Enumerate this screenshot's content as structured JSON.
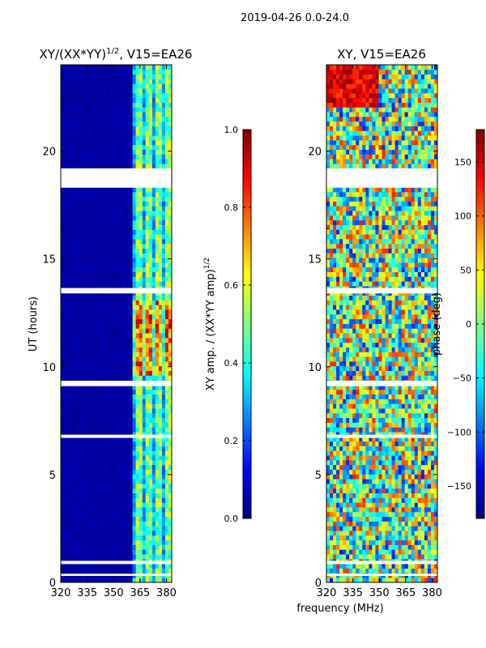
{
  "figure": {
    "suptitle": "2019-04-26 0.0-24.0",
    "shared_xlabel": "frequency (MHz)"
  },
  "colors": {
    "jet": [
      "#00007f",
      "#0000ff",
      "#007fff",
      "#00ffff",
      "#7fff7f",
      "#ffff00",
      "#ff7f00",
      "#ff0000",
      "#7f0000"
    ],
    "gap": "#ffffff"
  },
  "chart_data": [
    {
      "type": "heatmap",
      "title_text": "XY/(XX*YY)",
      "title_exp": "1/2",
      "title_suffix": ", V15=EA26",
      "xlabel": "",
      "ylabel": "UT (hours)",
      "xlim": [
        320,
        383
      ],
      "ylim": [
        0,
        24
      ],
      "xticks": [
        320,
        335,
        350,
        365,
        380
      ],
      "yticks": [
        0,
        5,
        10,
        15,
        20
      ],
      "gaps_ut": [
        [
          18.3,
          19.2
        ],
        [
          13.4,
          13.65
        ],
        [
          9.1,
          9.35
        ],
        [
          6.7,
          6.85
        ],
        [
          0.85,
          1.0
        ],
        [
          0.3,
          0.4
        ]
      ],
      "colorbar": {
        "label_text": "XY amp. / (XX*YY amp)",
        "label_exp": "1/2",
        "range": [
          0.0,
          1.0
        ],
        "ticks": [
          "0.0",
          "0.2",
          "0.4",
          "0.6",
          "0.8",
          "1.0"
        ],
        "tick_values": [
          0.0,
          0.2,
          0.4,
          0.6,
          0.8,
          1.0
        ]
      }
    },
    {
      "type": "heatmap",
      "title_text": "XY, V15=EA26",
      "xlabel": "",
      "ylabel": "",
      "xlim": [
        320,
        383
      ],
      "ylim": [
        0,
        24
      ],
      "xticks": [
        320,
        335,
        350,
        365,
        380
      ],
      "yticks": [
        0,
        5,
        10,
        15,
        20
      ],
      "gaps_ut": [
        [
          18.3,
          19.2
        ],
        [
          13.4,
          13.65
        ],
        [
          9.1,
          9.35
        ],
        [
          6.7,
          6.85
        ],
        [
          0.85,
          1.0
        ],
        [
          0.3,
          0.4
        ]
      ],
      "colorbar": {
        "label_text": "phase (deg)",
        "range": [
          -180,
          180
        ],
        "ticks": [
          "150",
          "100",
          "50",
          "0",
          "−50",
          "−100",
          "−150"
        ],
        "tick_values": [
          150,
          100,
          50,
          0,
          -50,
          -100,
          -150
        ]
      }
    }
  ]
}
